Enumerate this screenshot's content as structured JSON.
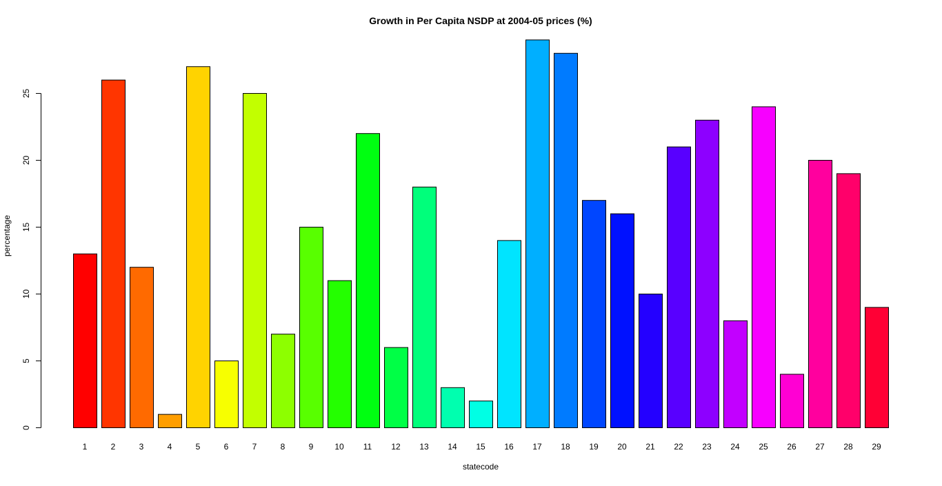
{
  "chart_data": {
    "type": "bar",
    "title": "Growth in Per Capita NSDP at 2004-05 prices (%)",
    "xlabel": "statecode",
    "ylabel": "percentage",
    "categories": [
      "1",
      "2",
      "3",
      "4",
      "5",
      "6",
      "7",
      "8",
      "9",
      "10",
      "11",
      "12",
      "13",
      "14",
      "15",
      "16",
      "17",
      "18",
      "19",
      "20",
      "21",
      "22",
      "23",
      "24",
      "25",
      "26",
      "27",
      "28",
      "29"
    ],
    "values": [
      13,
      26,
      12,
      1,
      27,
      5,
      25,
      7,
      15,
      11,
      22,
      6,
      18,
      3,
      2,
      14,
      29,
      28,
      17,
      16,
      10,
      21,
      23,
      8,
      24,
      4,
      20,
      19,
      9
    ],
    "colors": [
      "#FF0000",
      "#FF3500",
      "#FF6A00",
      "#FF9E00",
      "#FFD300",
      "#F7FF00",
      "#C2FF00",
      "#8DFF00",
      "#58FF00",
      "#24FF00",
      "#00FF11",
      "#00FF46",
      "#00FF7B",
      "#00FFAF",
      "#00FFE4",
      "#00E4FF",
      "#00AFFF",
      "#007BFF",
      "#0046FF",
      "#0011FF",
      "#2400FF",
      "#5800FF",
      "#8D00FF",
      "#C200FF",
      "#F700FF",
      "#FF00D3",
      "#FF009E",
      "#FF006A",
      "#FF0035"
    ],
    "ylim": [
      0,
      29
    ],
    "yticks": [
      0,
      5,
      10,
      15,
      20,
      25
    ],
    "grid": false,
    "legend": "none"
  }
}
